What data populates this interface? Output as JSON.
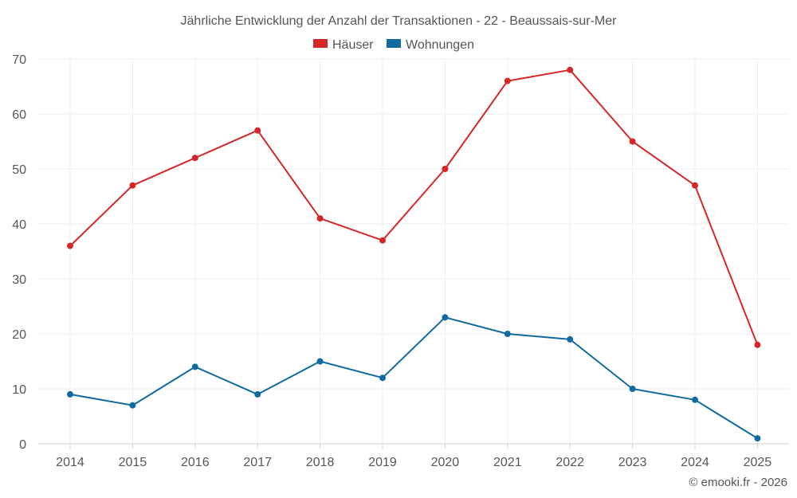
{
  "chart_data": {
    "type": "line",
    "title": "Jährliche Entwicklung der Anzahl der Transaktionen - 22 - Beaussais-sur-Mer",
    "categories": [
      "2014",
      "2015",
      "2016",
      "2017",
      "2018",
      "2019",
      "2020",
      "2021",
      "2022",
      "2023",
      "2024",
      "2025"
    ],
    "series": [
      {
        "name": "Häuser",
        "color": "#d62728",
        "values": [
          36,
          47,
          52,
          57,
          41,
          37,
          50,
          66,
          68,
          55,
          47,
          18
        ]
      },
      {
        "name": "Wohnungen",
        "color": "#0f6aa0",
        "values": [
          9,
          7,
          14,
          9,
          15,
          12,
          23,
          20,
          19,
          10,
          8,
          1
        ]
      }
    ],
    "ylim": [
      0,
      70
    ],
    "yticks": [
      0,
      10,
      20,
      30,
      40,
      50,
      60,
      70
    ],
    "xlabel": "",
    "ylabel": "",
    "grid": true,
    "legend": "top-center"
  },
  "credit": "© emooki.fr - 2026"
}
